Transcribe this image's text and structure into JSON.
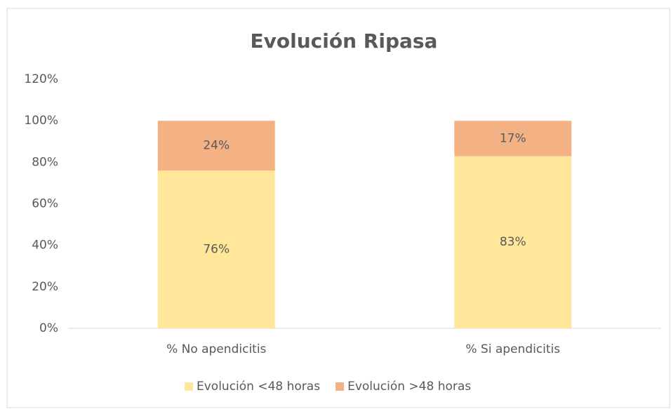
{
  "chart_data": {
    "type": "stacked_bar",
    "title": "Evolución Ripasa",
    "categories": [
      "% No apendicitis",
      "% Si apendicitis"
    ],
    "series": [
      {
        "name": "Evolución <48 horas",
        "color": "#FFE699",
        "values": [
          76,
          83
        ],
        "value_labels": [
          "76%",
          "83%"
        ]
      },
      {
        "name": "Evolución >48 horas",
        "color": "#F4B183",
        "values": [
          24,
          17
        ],
        "value_labels": [
          "24%",
          "17%"
        ]
      }
    ],
    "ylim": [
      0,
      120
    ],
    "yticks": [
      {
        "value": 0,
        "label": "0%"
      },
      {
        "value": 20,
        "label": "20%"
      },
      {
        "value": 40,
        "label": "40%"
      },
      {
        "value": 60,
        "label": "60%"
      },
      {
        "value": 80,
        "label": "80%"
      },
      {
        "value": 100,
        "label": "100%"
      },
      {
        "value": 120,
        "label": "120%"
      }
    ],
    "legend": "bottom"
  }
}
